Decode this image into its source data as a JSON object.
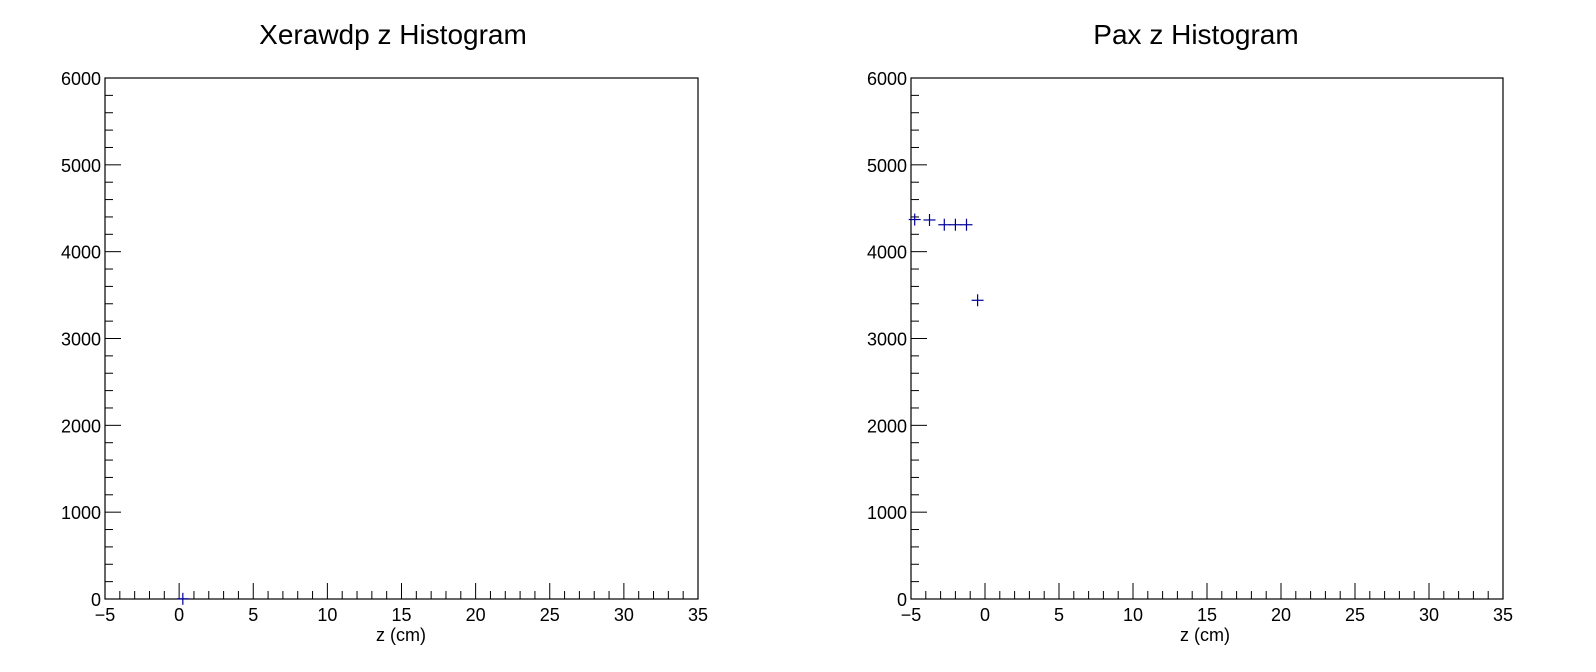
{
  "colors": {
    "axis": "#000000",
    "marker": "#000099",
    "background": "#ffffff"
  },
  "chart_data": [
    {
      "type": "scatter",
      "title": "Xerawdp z Histogram",
      "xlabel": "z (cm)",
      "ylabel": "",
      "xlim": [
        -5,
        35
      ],
      "ylim": [
        0,
        6000
      ],
      "grid": false,
      "x_ticks": [
        -5,
        0,
        5,
        10,
        15,
        20,
        25,
        30,
        35
      ],
      "y_ticks": [
        0,
        1000,
        2000,
        3000,
        4000,
        5000,
        6000
      ],
      "points": [
        {
          "x": 0.25,
          "y": 2,
          "xerr": 0.25
        }
      ]
    },
    {
      "type": "scatter",
      "title": "Pax z Histogram",
      "xlabel": "z (cm)",
      "ylabel": "",
      "xlim": [
        -5,
        35
      ],
      "ylim": [
        0,
        6000
      ],
      "grid": false,
      "x_ticks": [
        -5,
        0,
        5,
        10,
        15,
        20,
        25,
        30,
        35
      ],
      "y_ticks": [
        0,
        1000,
        2000,
        3000,
        4000,
        5000,
        6000
      ],
      "points": [
        {
          "x": -4.75,
          "y": 4370,
          "xerr": 0.25
        },
        {
          "x": -3.75,
          "y": 4365,
          "xerr": 0.25
        },
        {
          "x": -2.75,
          "y": 4310,
          "xerr": 0.25
        },
        {
          "x": -2.0,
          "y": 4310,
          "xerr": 0.25
        },
        {
          "x": -1.25,
          "y": 4310,
          "xerr": 0.25
        },
        {
          "x": -0.5,
          "y": 3440,
          "xerr": 0.25
        }
      ]
    }
  ]
}
